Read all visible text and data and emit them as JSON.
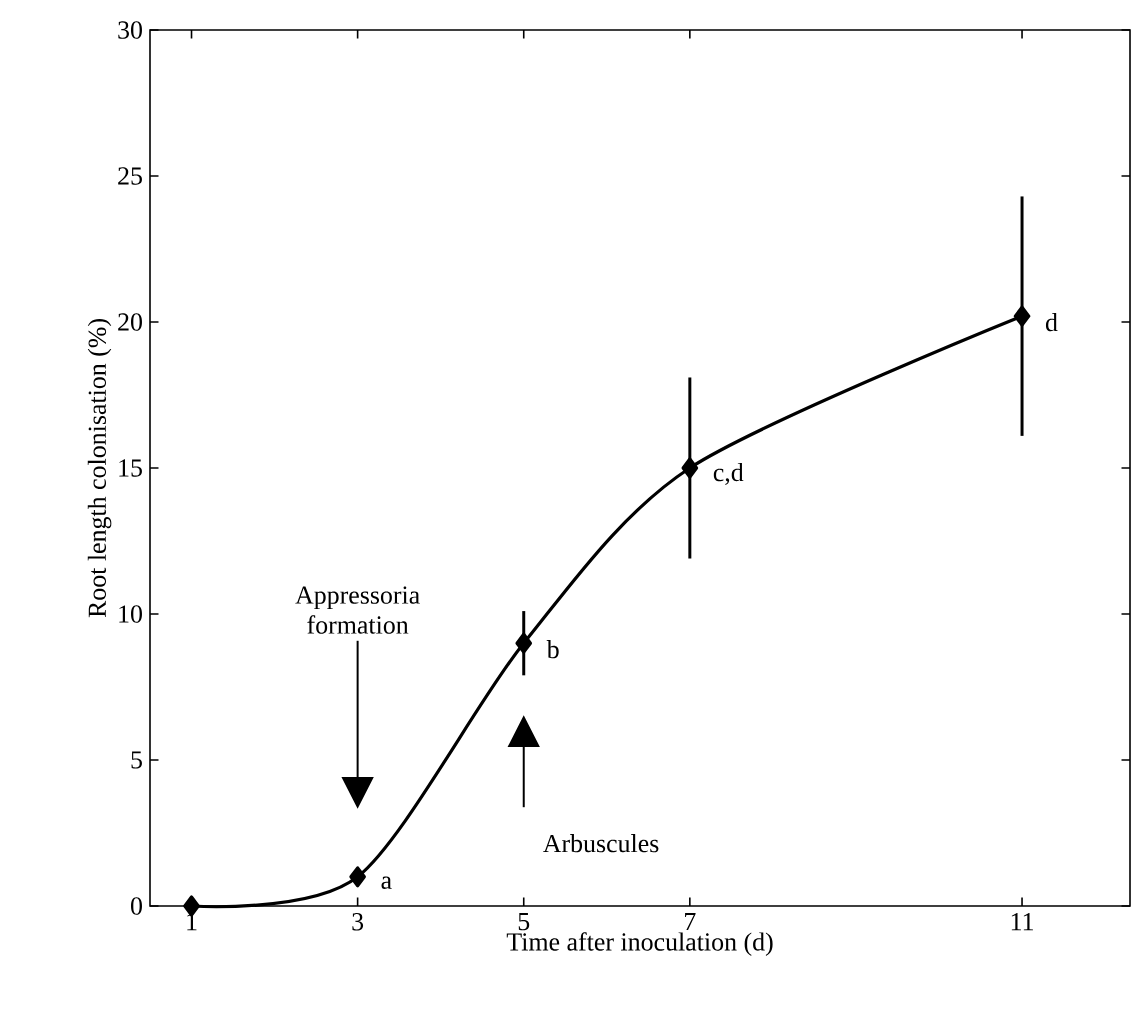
{
  "chart_data": {
    "type": "line",
    "xlabel": "Time after inoculation (d)",
    "ylabel": "Root length colonisation (%)",
    "x": [
      1,
      3,
      5,
      7,
      11
    ],
    "values": [
      0,
      1,
      9,
      15,
      20.2
    ],
    "errors": [
      null,
      null,
      1.1,
      3.1,
      4.1
    ],
    "color": "#000000",
    "marker": "diamond",
    "line_style": "solid",
    "xlim": [
      0.5,
      12.3
    ],
    "xticks": [
      1,
      3,
      5,
      7,
      11
    ],
    "ylim": [
      0,
      30
    ],
    "yticks": [
      0,
      5,
      10,
      15,
      20,
      25,
      30
    ],
    "annotations": [
      {
        "text": "a",
        "x": 3,
        "y": 1
      },
      {
        "text": "b",
        "x": 5,
        "y": 9
      },
      {
        "text": "c,d",
        "x": 7,
        "y": 15
      },
      {
        "text": "d",
        "x": 11,
        "y": 20.2
      },
      "Appressoria formation",
      "Arbuscules"
    ]
  }
}
